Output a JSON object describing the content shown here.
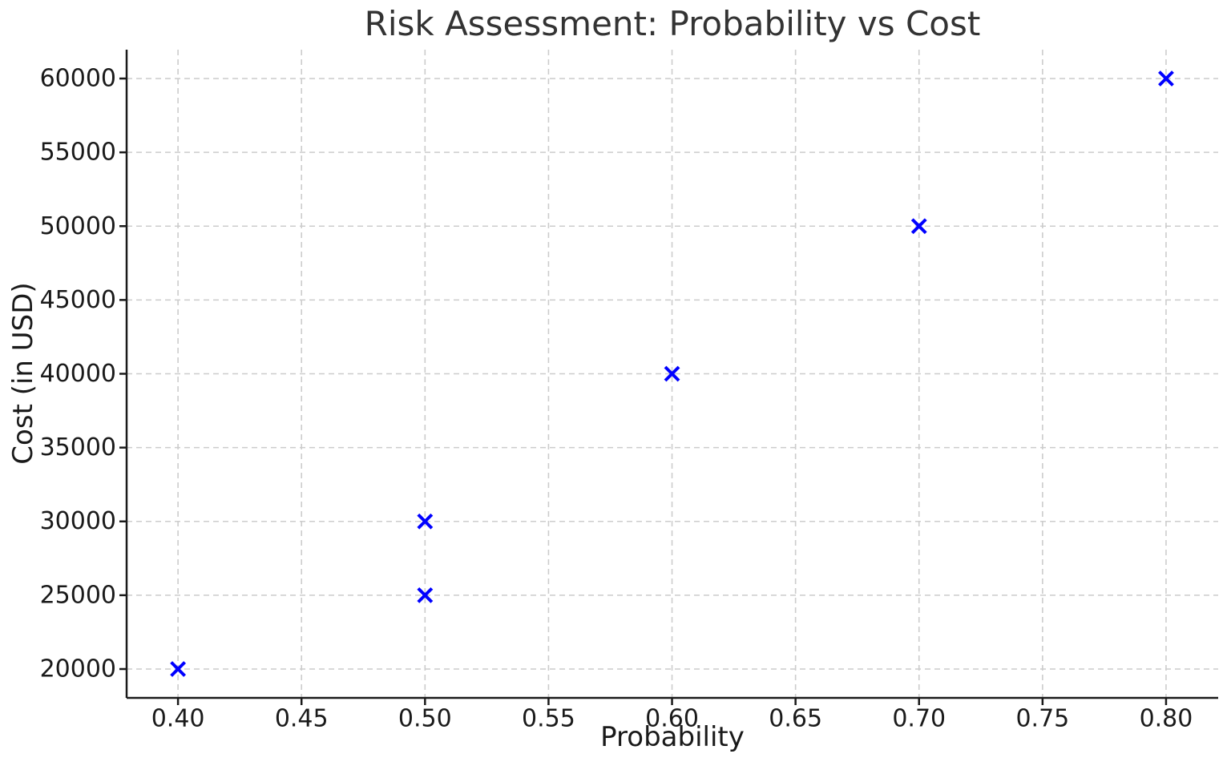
{
  "chart_data": {
    "type": "scatter",
    "title": "Risk Assessment: Probability vs Cost",
    "xlabel": "Probability",
    "ylabel": "Cost (in USD)",
    "points": [
      {
        "x": 0.4,
        "y": 20000
      },
      {
        "x": 0.5,
        "y": 25000
      },
      {
        "x": 0.5,
        "y": 30000
      },
      {
        "x": 0.6,
        "y": 40000
      },
      {
        "x": 0.7,
        "y": 50000
      },
      {
        "x": 0.8,
        "y": 60000
      }
    ],
    "x_ticks": [
      0.4,
      0.45,
      0.5,
      0.55,
      0.6,
      0.65,
      0.7,
      0.75,
      0.8
    ],
    "x_tick_labels": [
      "0.40",
      "0.45",
      "0.50",
      "0.55",
      "0.60",
      "0.65",
      "0.70",
      "0.75",
      "0.80"
    ],
    "y_ticks": [
      20000,
      25000,
      30000,
      35000,
      40000,
      45000,
      50000,
      55000,
      60000
    ],
    "y_tick_labels": [
      "20000",
      "25000",
      "30000",
      "35000",
      "40000",
      "45000",
      "50000",
      "55000",
      "60000"
    ],
    "xlim": [
      0.3792,
      0.8211
    ],
    "ylim": [
      18046,
      61954
    ],
    "grid": true,
    "grid_style": "dashed",
    "legend": "none",
    "marker": {
      "shape": "x",
      "color": "#0000ff",
      "size": 17,
      "stroke_width": 4
    },
    "colors": {
      "grid": "#cccccc",
      "axis": "#1a1a1a",
      "tick_text": "#1a1a1a",
      "title_text": "#333333",
      "background": "#ffffff"
    }
  }
}
